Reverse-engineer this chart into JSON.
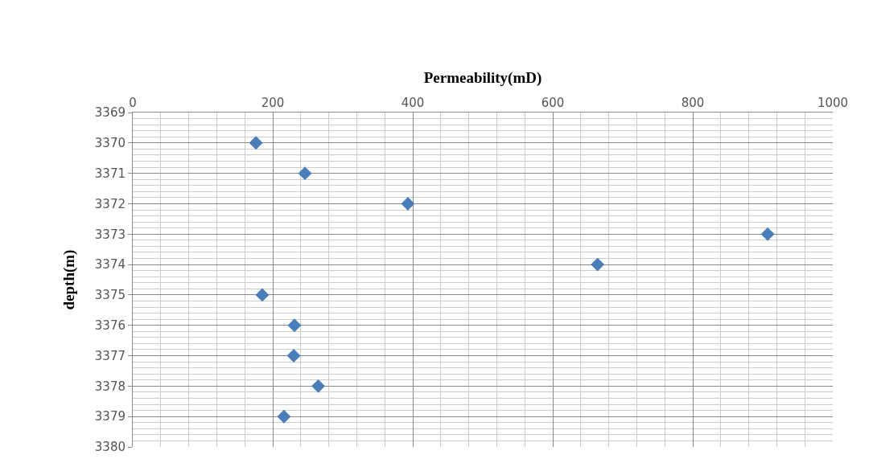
{
  "chart_data": {
    "type": "scatter",
    "xlabel": "Permeability(mD)",
    "ylabel": "depth(m)",
    "x": [
      176,
      246,
      393,
      907,
      664,
      185,
      231,
      230,
      265,
      216
    ],
    "series": [
      {
        "color": "#4a7ebb",
        "values": [
          3370,
          3371,
          3372,
          3373,
          3374,
          3375,
          3376,
          3377,
          3378,
          3379
        ]
      }
    ],
    "xlim": [
      0,
      1000
    ],
    "xticks": [
      0,
      200,
      400,
      600,
      800,
      1000
    ],
    "ylim": [
      3380,
      3369
    ],
    "yticks": [
      3369,
      3370,
      3371,
      3372,
      3373,
      3374,
      3375,
      3376,
      3377,
      3378,
      3379,
      3380
    ],
    "grid": true,
    "marker": "diamond",
    "legend": false
  }
}
